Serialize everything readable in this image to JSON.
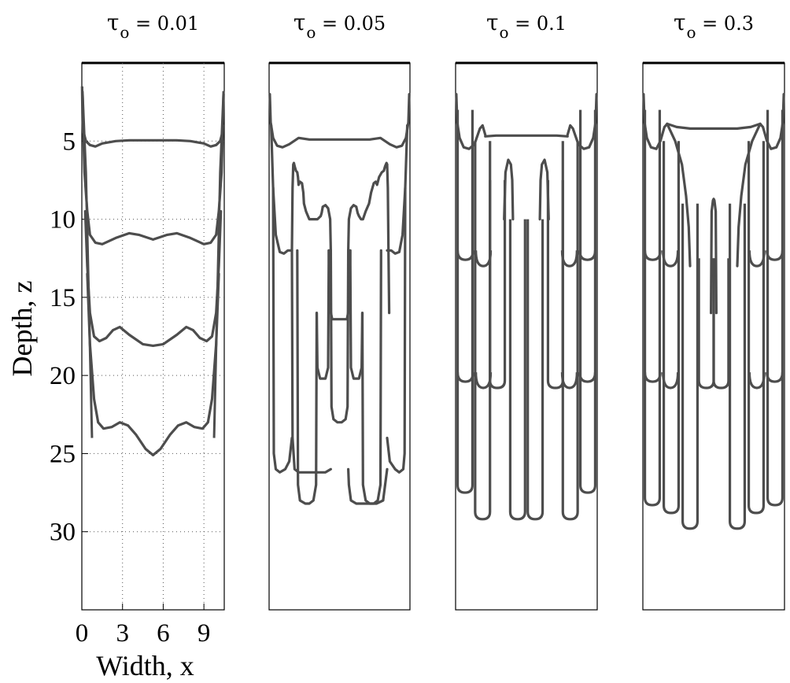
{
  "chart_data": {
    "type": "line",
    "description_note": "",
    "ylabel": "Depth, z",
    "xlabel": "Width, x",
    "xticks": [
      "0",
      "3",
      "6",
      "9"
    ],
    "yticks": [
      "5",
      "10",
      "15",
      "20",
      "25",
      "30"
    ],
    "xlim": [
      0,
      10.5
    ],
    "ylim": [
      35,
      0
    ],
    "y_reversed": true,
    "grid": "dotted (first panel only)",
    "line_color": "#4d4d4d",
    "panels": [
      {
        "title_symbol": "τ",
        "title_sub": "o",
        "title_value": "= 0.01",
        "fronts_bottom_depth": [
          5.4,
          11.6,
          18.0,
          25.1
        ],
        "series": [
          {
            "x": [
              0.05,
              0.1,
              0.15,
              0.3,
              0.6,
              1.0,
              1.5,
              2.5,
              3.5,
              4.5,
              5.25,
              6.0,
              7.0,
              8.0,
              9.0,
              9.5,
              9.9,
              10.2,
              10.35,
              10.4,
              10.45
            ],
            "y": [
              2.0,
              3.5,
              4.5,
              5.0,
              5.25,
              5.35,
              5.15,
              5.0,
              4.95,
              4.95,
              4.95,
              4.95,
              4.95,
              5.0,
              5.15,
              5.35,
              5.25,
              5.0,
              4.5,
              3.5,
              2.0
            ]
          },
          {
            "x": [
              0.1,
              0.2,
              0.4,
              0.6,
              1.0,
              1.5,
              2.5,
              3.5,
              4.2,
              5.25,
              6.3,
              7.0,
              8.0,
              9.0,
              9.5,
              9.9,
              10.1,
              10.3,
              10.4
            ],
            "y": [
              4.0,
              7.0,
              9.5,
              11.0,
              11.5,
              11.6,
              11.2,
              10.9,
              11.0,
              11.3,
              11.0,
              10.9,
              11.2,
              11.6,
              11.5,
              11.0,
              9.5,
              7.0,
              4.0
            ]
          },
          {
            "x": [
              0.25,
              0.4,
              0.6,
              0.9,
              1.3,
              1.8,
              2.3,
              2.8,
              3.5,
              4.5,
              5.25,
              6.0,
              7.0,
              7.7,
              8.2,
              8.7,
              9.2,
              9.6,
              9.9,
              10.1,
              10.25
            ],
            "y": [
              9.5,
              13.0,
              16.0,
              17.5,
              17.8,
              17.6,
              17.1,
              16.9,
              17.4,
              18.0,
              18.1,
              18.0,
              17.4,
              16.9,
              17.1,
              17.6,
              17.8,
              17.5,
              16.0,
              13.0,
              9.5
            ]
          },
          {
            "x": [
              0.4,
              0.6,
              0.9,
              1.2,
              1.6,
              2.2,
              2.8,
              3.4,
              4.0,
              4.7,
              5.25,
              5.8,
              6.5,
              7.1,
              7.7,
              8.3,
              8.9,
              9.3,
              9.6,
              9.9,
              10.1
            ],
            "y": [
              13.5,
              18.0,
              21.5,
              23.0,
              23.4,
              23.3,
              23.0,
              23.2,
              23.8,
              24.7,
              25.1,
              24.7,
              23.8,
              23.2,
              23.0,
              23.3,
              23.4,
              23.0,
              21.5,
              18.0,
              13.5
            ]
          }
        ]
      },
      {
        "title_symbol": "τ",
        "title_sub": "o",
        "title_value": "= 0.05",
        "fronts_bottom_depth": [
          5.4,
          12.2,
          20.2,
          28.2
        ],
        "series": [
          {
            "x": [
              0.05,
              0.12,
              0.3,
              0.6,
              1.0,
              1.5,
              2.2,
              3.0,
              4.0,
              5.25,
              6.5,
              7.5,
              8.3,
              9.0,
              9.5,
              9.9,
              10.2,
              10.38,
              10.45
            ],
            "y": [
              2.0,
              3.8,
              4.8,
              5.3,
              5.4,
              5.2,
              4.8,
              4.9,
              4.9,
              4.9,
              4.9,
              4.9,
              4.8,
              5.2,
              5.4,
              5.3,
              4.8,
              3.8,
              2.0
            ]
          },
          {
            "x": [
              1.7,
              1.75,
              1.8,
              1.85,
              1.9,
              2.0,
              2.1,
              2.15,
              2.2,
              2.3,
              2.45,
              2.55,
              2.6,
              2.75,
              3.0,
              3.3,
              3.6,
              3.85,
              3.92,
              4.0,
              4.2,
              4.4,
              4.55,
              4.6
            ],
            "y": [
              12.0,
              8.0,
              6.5,
              6.4,
              6.6,
              6.9,
              7.0,
              7.3,
              7.8,
              7.6,
              7.7,
              8.3,
              9.0,
              9.5,
              10.0,
              10.0,
              10.0,
              9.8,
              9.6,
              9.2,
              9.1,
              9.3,
              10.0,
              12.0
            ]
          },
          {
            "x": [
              5.9,
              5.95,
              6.1,
              6.3,
              6.5,
              6.6,
              6.7,
              6.85,
              6.9,
              7.0,
              7.2,
              7.45,
              7.6,
              7.8,
              7.95,
              8.05,
              8.2,
              8.4,
              8.55,
              8.65,
              8.75,
              8.8
            ],
            "y": [
              12.0,
              10.0,
              9.3,
              9.1,
              9.2,
              9.6,
              9.8,
              10.0,
              10.0,
              10.0,
              9.5,
              9.0,
              8.3,
              7.7,
              7.6,
              7.8,
              7.3,
              7.0,
              6.9,
              6.6,
              6.4,
              6.5
            ]
          },
          {
            "x": [
              8.8,
              8.85,
              8.9,
              8.95
            ],
            "y": [
              6.5,
              8.0,
              12.0,
              16.0
            ]
          },
          {
            "x": [
              0.15,
              0.3,
              0.5,
              0.8,
              1.1,
              1.4,
              1.7
            ],
            "y": [
              4.0,
              8.0,
              11.0,
              12.1,
              12.2,
              12.0,
              12.0
            ]
          },
          {
            "x": [
              8.8,
              9.1,
              9.4,
              9.7,
              9.95,
              10.15,
              10.3
            ],
            "y": [
              12.0,
              12.0,
              12.2,
              12.1,
              11.0,
              8.0,
              4.0
            ]
          },
          {
            "x": [
              1.7,
              1.75,
              1.9,
              2.2,
              2.6,
              3.0,
              3.4,
              3.8,
              4.2,
              4.6
            ],
            "y": [
              12.0,
              24.0,
              26.0,
              26.2,
              26.2,
              26.2,
              26.2,
              26.2,
              26.2,
              26.0
            ]
          },
          {
            "x": [
              4.6,
              4.65,
              4.8,
              5.1,
              5.25,
              5.4,
              5.7,
              5.85,
              5.9
            ],
            "y": [
              12.0,
              22.0,
              22.8,
              23.0,
              23.0,
              23.0,
              22.8,
              22.0,
              12.0
            ]
          },
          {
            "x": [
              5.9,
              5.95,
              6.1,
              6.5,
              7.0,
              7.5,
              8.0,
              8.5,
              8.8
            ],
            "y": [
              26.0,
              27.0,
              28.0,
              28.2,
              28.2,
              28.2,
              28.2,
              28.0,
              26.0
            ]
          },
          {
            "x": [
              0.3,
              0.35,
              0.5,
              0.8,
              1.2,
              1.5,
              1.7
            ],
            "y": [
              8.0,
              25.0,
              26.0,
              26.2,
              26.0,
              25.5,
              24.0
            ]
          },
          {
            "x": [
              8.8,
              9.0,
              9.4,
              9.7,
              10.0,
              10.1,
              10.15
            ],
            "y": [
              24.0,
              25.5,
              26.0,
              26.2,
              26.0,
              25.0,
              8.0
            ]
          },
          {
            "x": [
              2.1,
              2.15,
              2.3,
              2.7,
              3.0,
              3.3,
              3.5,
              3.55
            ],
            "y": [
              12.0,
              27.0,
              28.0,
              28.2,
              28.2,
              28.0,
              27.0,
              16.0
            ]
          },
          {
            "x": [
              6.95,
              7.0,
              7.2,
              7.5,
              7.8,
              8.1,
              8.3,
              8.35
            ],
            "y": [
              16.0,
              27.0,
              28.0,
              28.2,
              28.2,
              28.0,
              27.0,
              12.0
            ]
          },
          {
            "x": [
              3.55,
              3.6,
              3.8,
              4.2,
              4.4,
              4.45
            ],
            "y": [
              16.0,
              19.5,
              20.2,
              20.2,
              19.5,
              12.0
            ]
          },
          {
            "x": [
              6.05,
              6.1,
              6.3,
              6.7,
              6.9,
              6.95
            ],
            "y": [
              12.0,
              19.5,
              20.2,
              20.2,
              19.5,
              16.0
            ]
          },
          {
            "x": [
              4.45,
              4.5,
              4.7,
              4.9,
              5.25,
              5.6,
              5.8,
              6.0,
              6.05
            ],
            "y": [
              12.0,
              15.5,
              16.4,
              16.4,
              16.4,
              16.4,
              16.4,
              15.5,
              12.0
            ]
          }
        ]
      },
      {
        "title_symbol": "τ",
        "title_sub": "o",
        "title_value": "= 0.1",
        "fronts_bottom_depth": [
          5.4,
          13.0,
          20.8,
          29.2
        ],
        "series": [
          {
            "x": [
              0.05,
              0.12,
              0.3,
              0.6,
              1.0,
              1.4,
              1.8,
              2.0,
              2.2
            ],
            "y": [
              2.0,
              3.8,
              4.8,
              5.4,
              5.5,
              5.2,
              4.2,
              4.0,
              4.6
            ]
          },
          {
            "x": [
              2.2,
              3.0,
              4.0,
              5.25,
              6.5,
              7.5,
              8.3
            ],
            "y": [
              4.7,
              4.65,
              4.65,
              4.65,
              4.65,
              4.65,
              4.7
            ]
          },
          {
            "x": [
              8.3,
              8.5,
              8.7,
              9.1,
              9.5,
              9.9,
              10.2,
              10.38,
              10.45
            ],
            "y": [
              4.6,
              4.0,
              4.2,
              5.2,
              5.5,
              5.4,
              4.8,
              3.8,
              2.0
            ]
          },
          {
            "x": [
              3.6,
              3.7,
              3.9,
              4.1,
              4.2,
              4.25
            ],
            "y": [
              10.0,
              7.0,
              6.2,
              6.5,
              7.5,
              10.0
            ]
          },
          {
            "x": [
              6.25,
              6.3,
              6.4,
              6.6,
              6.8,
              6.9
            ],
            "y": [
              10.0,
              7.5,
              6.5,
              6.2,
              7.0,
              10.0
            ]
          }
        ]
      },
      {
        "title_symbol": "τ",
        "title_sub": "o",
        "title_value": "= 0.3",
        "fronts_bottom_depth": [
          5.4,
          13.0,
          20.8,
          29.8
        ],
        "series": [
          {
            "x": [
              0.05,
              0.12,
              0.3,
              0.6,
              1.0,
              1.3,
              1.6,
              1.8
            ],
            "y": [
              2.0,
              3.8,
              4.8,
              5.4,
              5.5,
              5.0,
              4.1,
              3.9
            ]
          },
          {
            "x": [
              1.8,
              2.5,
              3.5,
              4.5,
              5.25,
              6.0,
              7.0,
              8.0,
              8.7
            ],
            "y": [
              3.9,
              4.1,
              4.2,
              4.2,
              4.2,
              4.2,
              4.2,
              4.1,
              3.9
            ]
          },
          {
            "x": [
              8.7,
              8.9,
              9.2,
              9.5,
              9.9,
              10.2,
              10.38,
              10.45
            ],
            "y": [
              3.9,
              4.1,
              5.0,
              5.5,
              5.4,
              4.8,
              3.8,
              2.0
            ]
          },
          {
            "x": [
              1.8,
              2.4,
              2.9,
              3.2,
              3.4,
              3.5
            ],
            "y": [
              3.9,
              5.0,
              6.5,
              8.5,
              10.5,
              13.0
            ]
          },
          {
            "x": [
              8.7,
              8.1,
              7.6,
              7.3,
              7.1,
              7.0
            ],
            "y": [
              3.9,
              5.0,
              6.5,
              8.5,
              10.5,
              13.0
            ]
          },
          {
            "x": [
              5.05,
              5.1,
              5.2,
              5.25,
              5.3,
              5.4,
              5.45
            ],
            "y": [
              16.0,
              9.5,
              8.8,
              8.7,
              8.8,
              9.5,
              16.0
            ]
          }
        ]
      }
    ]
  }
}
